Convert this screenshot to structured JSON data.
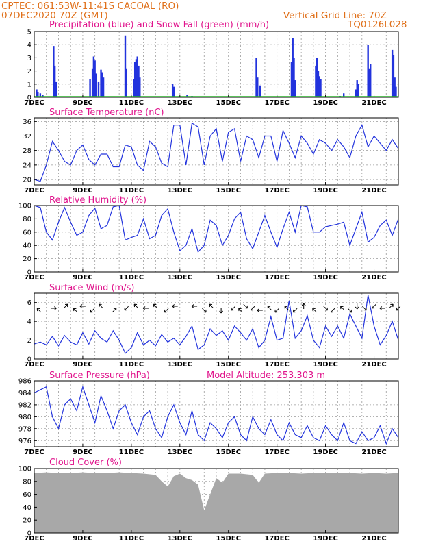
{
  "header": {
    "line1": "CPTEC:   061:53W-11:41S   CACOAL (RO)",
    "line2": "07DEC2020 70Z (GMT)",
    "grid_note": "Vertical Grid Line: 70Z",
    "run_id": "TQ0126L028"
  },
  "x_labels": [
    "7DEC",
    "9DEC",
    "11DEC",
    "13DEC",
    "15DEC",
    "17DEC",
    "19DEC",
    "21DEC"
  ],
  "colors": {
    "line": "#2233dd",
    "snow": "#22aa22",
    "cloud": "#a8a8a8",
    "title": "#e0148c",
    "header": "#e0701a"
  },
  "chart_data": [
    {
      "type": "bar",
      "title": "Precipitation (blue) and Snow Fall (green) (mm/h)",
      "ylim": [
        0,
        5
      ],
      "yticks": [
        0,
        1,
        2,
        3,
        4,
        5
      ],
      "series": [
        {
          "name": "Precipitation",
          "values": [
            {
              "day": 7.1,
              "v": 0.6
            },
            {
              "day": 7.15,
              "v": 0.4
            },
            {
              "day": 7.25,
              "v": 0.3
            },
            {
              "day": 7.35,
              "v": 0.2
            },
            {
              "day": 7.8,
              "v": 3.9
            },
            {
              "day": 7.85,
              "v": 2.4
            },
            {
              "day": 7.9,
              "v": 1.2
            },
            {
              "day": 9.3,
              "v": 1.4
            },
            {
              "day": 9.4,
              "v": 2.2
            },
            {
              "day": 9.45,
              "v": 3.1
            },
            {
              "day": 9.5,
              "v": 2.8
            },
            {
              "day": 9.55,
              "v": 1.8
            },
            {
              "day": 9.65,
              "v": 1.2
            },
            {
              "day": 9.75,
              "v": 2.1
            },
            {
              "day": 9.8,
              "v": 1.9
            },
            {
              "day": 9.85,
              "v": 1.5
            },
            {
              "day": 10.75,
              "v": 4.7
            },
            {
              "day": 10.8,
              "v": 2.2
            },
            {
              "day": 11.1,
              "v": 1.4
            },
            {
              "day": 11.15,
              "v": 2.7
            },
            {
              "day": 11.2,
              "v": 2.9
            },
            {
              "day": 11.25,
              "v": 3.1
            },
            {
              "day": 11.3,
              "v": 2.4
            },
            {
              "day": 11.35,
              "v": 1.5
            },
            {
              "day": 12.7,
              "v": 1.0
            },
            {
              "day": 12.75,
              "v": 0.8
            },
            {
              "day": 13.3,
              "v": 0.2
            },
            {
              "day": 13.5,
              "v": 0.1
            },
            {
              "day": 16.15,
              "v": 3.0
            },
            {
              "day": 16.2,
              "v": 1.5
            },
            {
              "day": 16.3,
              "v": 0.9
            },
            {
              "day": 17.6,
              "v": 2.7
            },
            {
              "day": 17.65,
              "v": 4.5
            },
            {
              "day": 17.7,
              "v": 3.0
            },
            {
              "day": 17.75,
              "v": 1.3
            },
            {
              "day": 18.6,
              "v": 2.4
            },
            {
              "day": 18.65,
              "v": 3.0
            },
            {
              "day": 18.7,
              "v": 2.0
            },
            {
              "day": 18.75,
              "v": 1.6
            },
            {
              "day": 18.8,
              "v": 1.4
            },
            {
              "day": 19.6,
              "v": 0.1
            },
            {
              "day": 19.75,
              "v": 0.3
            },
            {
              "day": 20.25,
              "v": 0.6
            },
            {
              "day": 20.3,
              "v": 1.3
            },
            {
              "day": 20.35,
              "v": 1.0
            },
            {
              "day": 20.75,
              "v": 4.0
            },
            {
              "day": 20.8,
              "v": 2.2
            },
            {
              "day": 20.85,
              "v": 2.5
            },
            {
              "day": 21.75,
              "v": 3.6
            },
            {
              "day": 21.8,
              "v": 3.2
            },
            {
              "day": 21.85,
              "v": 1.5
            },
            {
              "day": 21.9,
              "v": 0.8
            }
          ]
        },
        {
          "name": "Snow Fall",
          "values": [
            0
          ]
        }
      ]
    },
    {
      "type": "line",
      "title": "Surface Temperature (nC)",
      "ylim": [
        18.5,
        37
      ],
      "yticks": [
        20,
        24,
        28,
        32,
        36
      ],
      "x": [
        7.0,
        7.25,
        7.5,
        7.75,
        8.0,
        8.25,
        8.5,
        8.75,
        9.0,
        9.25,
        9.5,
        9.75,
        10.0,
        10.25,
        10.5,
        10.75,
        11.0,
        11.25,
        11.5,
        11.75,
        12.0,
        12.25,
        12.5,
        12.75,
        13.0,
        13.25,
        13.5,
        13.75,
        14.0,
        14.25,
        14.5,
        14.75,
        15.0,
        15.25,
        15.5,
        15.75,
        16.0,
        16.25,
        16.5,
        16.75,
        17.0,
        17.25,
        17.5,
        17.75,
        18.0,
        18.25,
        18.5,
        18.75,
        19.0,
        19.25,
        19.5,
        19.75,
        20.0,
        20.25,
        20.5,
        20.75,
        21.0,
        21.25,
        21.5,
        21.75,
        22.0
      ],
      "y": [
        20.0,
        19.5,
        24.0,
        30.5,
        28.0,
        25.0,
        24.0,
        28.0,
        29.5,
        25.5,
        24.0,
        27.0,
        27.0,
        23.5,
        23.5,
        29.5,
        29.0,
        24.0,
        22.5,
        30.5,
        29.0,
        24.5,
        23.5,
        35.0,
        35.0,
        24.0,
        35.5,
        34.5,
        24.0,
        32.0,
        34.0,
        25.0,
        33.0,
        34.0,
        25.0,
        32.0,
        31.0,
        26.0,
        32.0,
        32.0,
        25.0,
        33.5,
        30.0,
        26.0,
        32.0,
        30.0,
        27.0,
        31.0,
        30.0,
        28.0,
        31.0,
        29.0,
        26.0,
        32.0,
        35.0,
        29.0,
        32.0,
        30.0,
        28.0,
        31.0,
        28.5
      ]
    },
    {
      "type": "line",
      "title": "Relative Humidity (%)",
      "ylim": [
        0,
        100
      ],
      "yticks": [
        0,
        20,
        40,
        60,
        80,
        100
      ],
      "x": [
        7.0,
        7.25,
        7.5,
        7.75,
        8.0,
        8.25,
        8.5,
        8.75,
        9.0,
        9.25,
        9.5,
        9.75,
        10.0,
        10.25,
        10.5,
        10.75,
        11.0,
        11.25,
        11.5,
        11.75,
        12.0,
        12.25,
        12.5,
        12.75,
        13.0,
        13.25,
        13.5,
        13.75,
        14.0,
        14.25,
        14.5,
        14.75,
        15.0,
        15.25,
        15.5,
        15.75,
        16.0,
        16.25,
        16.5,
        16.75,
        17.0,
        17.25,
        17.5,
        17.75,
        18.0,
        18.25,
        18.5,
        18.75,
        19.0,
        19.25,
        19.5,
        19.75,
        20.0,
        20.25,
        20.5,
        20.75,
        21.0,
        21.25,
        21.5,
        21.75,
        22.0
      ],
      "y": [
        100,
        97,
        60,
        48,
        75,
        97,
        75,
        55,
        60,
        85,
        96,
        65,
        70,
        98,
        100,
        48,
        52,
        55,
        80,
        50,
        55,
        85,
        95,
        60,
        32,
        40,
        65,
        30,
        40,
        78,
        70,
        40,
        55,
        80,
        90,
        50,
        35,
        60,
        85,
        60,
        37,
        65,
        90,
        60,
        100,
        98,
        60,
        60,
        68,
        70,
        72,
        75,
        40,
        65,
        90,
        45,
        52,
        70,
        78,
        55,
        80
      ]
    },
    {
      "type": "line",
      "title": "Surface Wind (m/s)",
      "ylim": [
        0,
        7
      ],
      "yticks": [
        0,
        2,
        4,
        6
      ],
      "x": [
        7.0,
        7.25,
        7.5,
        7.75,
        8.0,
        8.25,
        8.5,
        8.75,
        9.0,
        9.25,
        9.5,
        9.75,
        10.0,
        10.25,
        10.5,
        10.75,
        11.0,
        11.25,
        11.5,
        11.75,
        12.0,
        12.25,
        12.5,
        12.75,
        13.0,
        13.25,
        13.5,
        13.75,
        14.0,
        14.25,
        14.5,
        14.75,
        15.0,
        15.25,
        15.5,
        15.75,
        16.0,
        16.25,
        16.5,
        16.75,
        17.0,
        17.25,
        17.5,
        17.75,
        18.0,
        18.25,
        18.5,
        18.75,
        19.0,
        19.25,
        19.5,
        19.75,
        20.0,
        20.25,
        20.5,
        20.75,
        21.0,
        21.25,
        21.5,
        21.75,
        22.0
      ],
      "y": [
        1.6,
        1.8,
        1.5,
        2.4,
        1.4,
        2.5,
        1.8,
        1.5,
        2.8,
        1.6,
        3.0,
        2.2,
        1.8,
        3.0,
        2.0,
        0.6,
        1.2,
        2.8,
        1.5,
        2.0,
        1.4,
        2.6,
        1.8,
        2.2,
        1.5,
        2.4,
        3.5,
        1.0,
        1.5,
        3.2,
        2.5,
        3.0,
        2.0,
        3.5,
        2.8,
        2.0,
        3.2,
        1.2,
        2.0,
        4.5,
        2.0,
        2.2,
        6.2,
        2.2,
        3.0,
        4.6,
        2.0,
        1.2,
        3.5,
        2.4,
        3.5,
        2.2,
        4.8,
        3.5,
        2.2,
        6.8,
        3.5,
        1.5,
        2.5,
        4.0,
        2.0
      ],
      "arrows": [
        {
          "day": 7.2,
          "dir": "NW"
        },
        {
          "day": 7.8,
          "dir": "E"
        },
        {
          "day": 8.3,
          "dir": "NE"
        },
        {
          "day": 8.7,
          "dir": "NW"
        },
        {
          "day": 9.0,
          "dir": "W"
        },
        {
          "day": 9.4,
          "dir": "SW"
        },
        {
          "day": 9.75,
          "dir": "NW"
        },
        {
          "day": 10.3,
          "dir": "NE"
        },
        {
          "day": 10.8,
          "dir": "SW"
        },
        {
          "day": 11.2,
          "dir": "NW"
        },
        {
          "day": 11.6,
          "dir": "W"
        },
        {
          "day": 12.0,
          "dir": "NW"
        },
        {
          "day": 12.45,
          "dir": "SW"
        },
        {
          "day": 12.8,
          "dir": "W"
        },
        {
          "day": 13.6,
          "dir": "W"
        },
        {
          "day": 14.0,
          "dir": "SE"
        },
        {
          "day": 14.3,
          "dir": "NW"
        },
        {
          "day": 14.7,
          "dir": "S"
        },
        {
          "day": 15.2,
          "dir": "SW"
        },
        {
          "day": 15.5,
          "dir": "NW"
        },
        {
          "day": 15.7,
          "dir": "SE"
        },
        {
          "day": 16.0,
          "dir": "SW"
        },
        {
          "day": 16.3,
          "dir": "W"
        },
        {
          "day": 16.7,
          "dir": "NW"
        },
        {
          "day": 17.0,
          "dir": "SW"
        },
        {
          "day": 17.4,
          "dir": "NW"
        },
        {
          "day": 17.75,
          "dir": "SW"
        },
        {
          "day": 18.1,
          "dir": "N"
        },
        {
          "day": 18.55,
          "dir": "NW"
        },
        {
          "day": 19.0,
          "dir": "SE"
        },
        {
          "day": 19.3,
          "dir": "SW"
        },
        {
          "day": 19.7,
          "dir": "NW"
        },
        {
          "day": 20.0,
          "dir": "SE"
        },
        {
          "day": 20.3,
          "dir": "S"
        },
        {
          "day": 20.6,
          "dir": "SE"
        },
        {
          "day": 21.0,
          "dir": "SW"
        },
        {
          "day": 21.35,
          "dir": "W"
        },
        {
          "day": 21.7,
          "dir": "NE"
        },
        {
          "day": 22.0,
          "dir": "SW"
        }
      ]
    },
    {
      "type": "line",
      "title": "Surface Pressure (hPa)",
      "note": "Model Altitude: 253.303 m",
      "ylim": [
        975,
        986
      ],
      "yticks": [
        976,
        978,
        980,
        982,
        984,
        986
      ],
      "x": [
        7.0,
        7.25,
        7.5,
        7.75,
        8.0,
        8.25,
        8.5,
        8.75,
        9.0,
        9.25,
        9.5,
        9.75,
        10.0,
        10.25,
        10.5,
        10.75,
        11.0,
        11.25,
        11.5,
        11.75,
        12.0,
        12.25,
        12.5,
        12.75,
        13.0,
        13.25,
        13.5,
        13.75,
        14.0,
        14.25,
        14.5,
        14.75,
        15.0,
        15.25,
        15.5,
        15.75,
        16.0,
        16.25,
        16.5,
        16.75,
        17.0,
        17.25,
        17.5,
        17.75,
        18.0,
        18.25,
        18.5,
        18.75,
        19.0,
        19.25,
        19.5,
        19.75,
        20.0,
        20.25,
        20.5,
        20.75,
        21.0,
        21.25,
        21.5,
        21.75,
        22.0
      ],
      "y": [
        984,
        984.5,
        985,
        980,
        978,
        982,
        983,
        981,
        985,
        982,
        979,
        983.5,
        981,
        978,
        981,
        982,
        979,
        977,
        980,
        981,
        978,
        976.5,
        980,
        982,
        979,
        977,
        981,
        977,
        976,
        979,
        978,
        976.5,
        979,
        980,
        977,
        976,
        980,
        978,
        977,
        979.5,
        977,
        976,
        979,
        977,
        976.5,
        978.5,
        976.5,
        976,
        978.5,
        977,
        976,
        979,
        976,
        975.5,
        977.5,
        976,
        976.5,
        978.5,
        975.5,
        978,
        976.5
      ]
    },
    {
      "type": "area",
      "title": "Cloud Cover (%)",
      "ylim": [
        0,
        100
      ],
      "yticks": [
        0,
        20,
        40,
        60,
        80,
        100
      ],
      "x": [
        7.0,
        7.5,
        8.0,
        8.5,
        9.0,
        9.5,
        10.0,
        10.5,
        11.0,
        11.5,
        12.0,
        12.25,
        12.5,
        12.75,
        13.0,
        13.25,
        13.5,
        13.75,
        14.0,
        14.25,
        14.5,
        14.75,
        15.0,
        15.5,
        16.0,
        16.25,
        16.5,
        17.0,
        17.5,
        18.0,
        18.5,
        19.0,
        19.5,
        20.0,
        20.5,
        21.0,
        21.5,
        22.0
      ],
      "y": [
        93,
        94,
        93,
        93,
        94,
        93,
        93,
        94,
        93,
        92,
        90,
        80,
        72,
        88,
        92,
        85,
        82,
        75,
        35,
        60,
        85,
        78,
        92,
        92,
        90,
        78,
        92,
        93,
        93,
        92,
        93,
        93,
        93,
        93,
        92,
        93,
        92,
        93
      ]
    }
  ]
}
